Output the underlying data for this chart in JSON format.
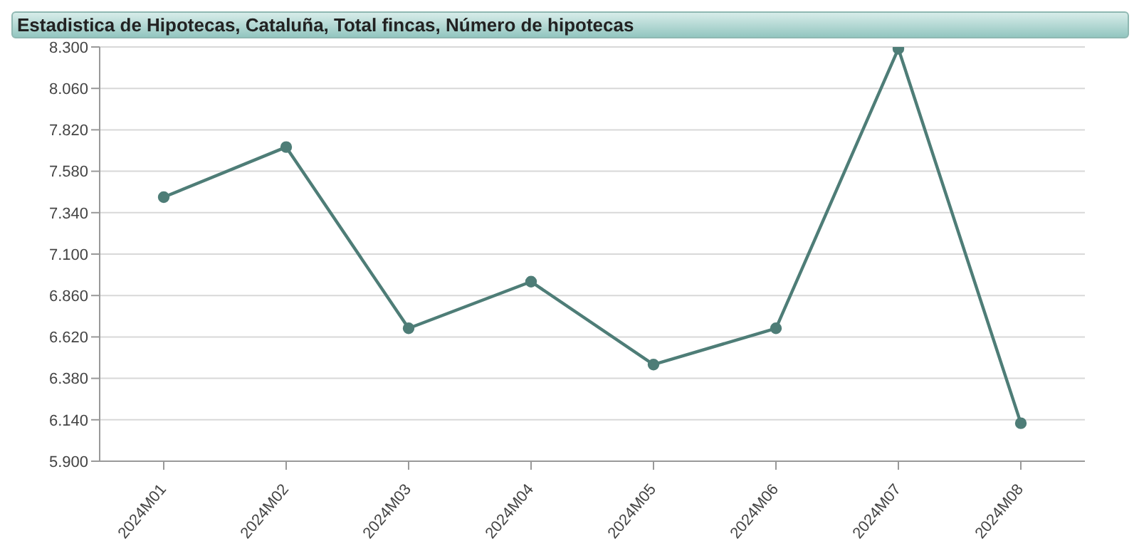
{
  "chart_data": {
    "type": "line",
    "title": "Estadistica de Hipotecas, Cataluña, Total fincas, Número de hipotecas",
    "categories": [
      "2024M01",
      "2024M02",
      "2024M03",
      "2024M04",
      "2024M05",
      "2024M06",
      "2024M07",
      "2024M08"
    ],
    "series": [
      {
        "color": "#4e7d77",
        "values": [
          7430,
          7720,
          6670,
          6940,
          6460,
          6670,
          8290,
          6120
        ]
      }
    ],
    "ylim": [
      5900,
      8300
    ],
    "yticks": [
      {
        "value": 5900,
        "label": "5.900"
      },
      {
        "value": 6140,
        "label": "6.140"
      },
      {
        "value": 6380,
        "label": "6.380"
      },
      {
        "value": 6620,
        "label": "6.620"
      },
      {
        "value": 6860,
        "label": "6.860"
      },
      {
        "value": 7100,
        "label": "7.100"
      },
      {
        "value": 7340,
        "label": "7.340"
      },
      {
        "value": 7580,
        "label": "7.580"
      },
      {
        "value": 7820,
        "label": "7.820"
      },
      {
        "value": 8060,
        "label": "8.060"
      },
      {
        "value": 8300,
        "label": "8.300"
      }
    ],
    "grid": "y",
    "marker": "circle",
    "line_style": "solid",
    "legend": false
  }
}
